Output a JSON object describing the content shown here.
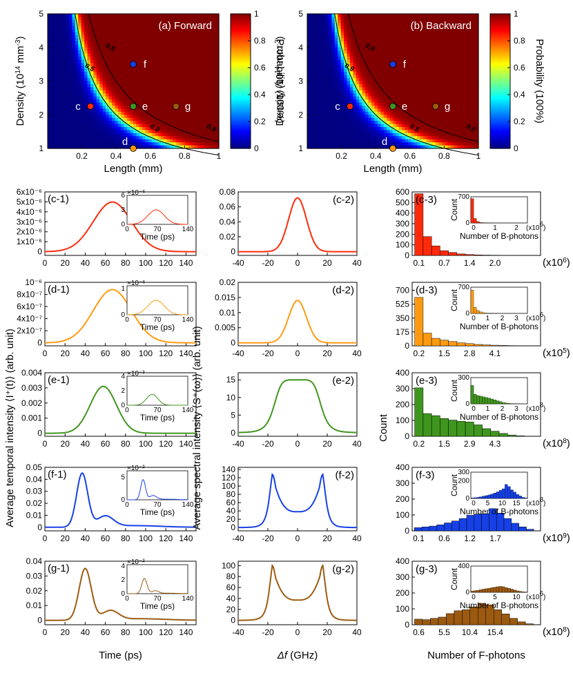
{
  "colors": {
    "c": "#ff2a0a",
    "d": "#ff9a10",
    "e": "#3f961e",
    "f": "#1640e6",
    "g": "#9c5a10"
  },
  "heatmaps": [
    {
      "panel": "(a) Forward",
      "xlabel": "Length (mm)",
      "ylabel": "Density (10",
      "ylabel_sup": "14",
      "ylabel_tail": " mm",
      "ylabel_sup2": "-3",
      "ylabel_end": ")",
      "xticks": [
        "0.2",
        "0.4",
        "0.6",
        "0.8",
        "1"
      ],
      "yticks": [
        "1",
        "2",
        "3",
        "4",
        "5"
      ],
      "cbar_label": "Probability (100%)",
      "cbar_ticks": [
        "0",
        "0.2",
        "0.4",
        "0.6",
        "0.8",
        "1"
      ],
      "contours": [
        "0.5",
        "0.9",
        "0.5",
        "0.9"
      ],
      "points": [
        {
          "id": "c",
          "L": 0.25,
          "D": 2.25
        },
        {
          "id": "d",
          "L": 0.5,
          "D": 1.0
        },
        {
          "id": "e",
          "L": 0.5,
          "D": 2.25
        },
        {
          "id": "f",
          "L": 0.5,
          "D": 3.5
        },
        {
          "id": "g",
          "L": 0.75,
          "D": 2.25
        }
      ]
    },
    {
      "panel": "(b) Backward",
      "xlabel": "Length (mm)",
      "ylabel": "Density (10",
      "ylabel_sup": "14",
      "ylabel_tail": " mm",
      "ylabel_sup2": "-3",
      "ylabel_end": ")",
      "xticks": [
        "0.2",
        "0.4",
        "0.6",
        "0.8",
        "1"
      ],
      "yticks": [
        "1",
        "2",
        "3",
        "4",
        "5"
      ],
      "cbar_label": "Probability (100%)",
      "cbar_ticks": [
        "0",
        "0.2",
        "0.4",
        "0.6",
        "0.8",
        "1"
      ],
      "contours": [
        "0.9",
        "0.5",
        "0.9",
        "0.5"
      ],
      "points": [
        {
          "id": "c",
          "L": 0.25,
          "D": 2.25
        },
        {
          "id": "d",
          "L": 0.5,
          "D": 1.0
        },
        {
          "id": "e",
          "L": 0.5,
          "D": 2.25
        },
        {
          "id": "f",
          "L": 0.5,
          "D": 3.5
        },
        {
          "id": "g",
          "L": 0.75,
          "D": 2.25
        }
      ]
    }
  ],
  "chart_data": {
    "type": "line",
    "col1": {
      "xlabel": "Time (ps)",
      "ylabel": "Average temporal intensity ⟨I⁺(t)⟩ (arb. unit)",
      "xticks": [
        "0",
        "20",
        "40",
        "60",
        "80",
        "100",
        "120",
        "140"
      ],
      "rows": [
        {
          "id": "c",
          "label": "(c-1)",
          "ylim": [
            -3.75e-07,
            6e-06
          ],
          "yticks": [
            "0",
            "1x10⁻⁶",
            "2x10⁻⁶",
            "3x10⁻⁶",
            "4x10⁻⁶",
            "5x10⁻⁶",
            "6x10⁻⁶"
          ],
          "ytick_vals": [
            0,
            1e-06,
            2e-06,
            3e-06,
            4e-06,
            5e-06,
            6e-06
          ],
          "peak": 4.98e-06,
          "inset": {
            "exp": "×10⁻⁶",
            "yticks": [
              "0",
              "3",
              "6"
            ],
            "ymax": 6,
            "peak": 3,
            "xticks": [
              "0",
              "70",
              "140"
            ],
            "xlabel": "Time (ps)"
          }
        },
        {
          "id": "d",
          "label": "(d-1)",
          "ylim": [
            -5e-08,
            1e-06
          ],
          "yticks": [
            "0",
            "2x10⁻⁷",
            "4x10⁻⁷",
            "6x10⁻⁷",
            "8x10⁻⁷",
            "10⁻⁶"
          ],
          "ytick_vals": [
            0,
            2e-07,
            4e-07,
            6e-07,
            8e-07,
            1e-06
          ],
          "peak": 8.8e-07,
          "inset": {
            "exp": "×10⁻⁶",
            "yticks": [
              "0",
              "1"
            ],
            "ymax": 1.1,
            "peak": 0.55,
            "xticks": [
              "0",
              "70",
              "140"
            ],
            "xlabel": "Time (ps)"
          }
        },
        {
          "id": "e",
          "label": "(e-1)",
          "ylim": [
            -0.0002,
            0.004
          ],
          "yticks": [
            "0",
            "0.001",
            "0.002",
            "0.003",
            "0.004"
          ],
          "ytick_vals": [
            0,
            0.001,
            0.002,
            0.003,
            0.004
          ],
          "peak": 0.0031,
          "inset": {
            "exp": "×10⁻³",
            "yticks": [
              "0",
              "2",
              "4"
            ],
            "ymax": 4,
            "peak": 1.5,
            "xticks": [
              "0",
              "70",
              "140"
            ],
            "xlabel": "Time (ps)"
          }
        },
        {
          "id": "f",
          "label": "(f-1)",
          "ylim": [
            -0.003,
            0.05
          ],
          "yticks": [
            "0",
            "0.01",
            "0.02",
            "0.03",
            "0.04",
            "0.05"
          ],
          "ytick_vals": [
            0,
            0.01,
            0.02,
            0.03,
            0.04,
            0.05
          ],
          "peak": 0.045,
          "inset": {
            "exp": "×10⁻²",
            "yticks": [
              "0",
              "5"
            ],
            "ymax": 6.5,
            "peak": 4.5,
            "xticks": [
              "0",
              "70",
              "140"
            ],
            "xlabel": "Time (ps)"
          }
        },
        {
          "id": "g",
          "label": "(g-1)",
          "ylim": [
            -0.003,
            0.04
          ],
          "yticks": [
            "0",
            "0.01",
            "0.02",
            "0.03",
            "0.04"
          ],
          "ytick_vals": [
            0,
            0.01,
            0.02,
            0.03,
            0.04
          ],
          "peak": 0.035,
          "inset": {
            "exp": "×10⁻²",
            "yticks": [
              "0",
              "2",
              "4"
            ],
            "ymax": 4.2,
            "peak": 2.2,
            "xticks": [
              "0",
              "70",
              "140"
            ],
            "xlabel": "Time (ps)"
          }
        }
      ]
    },
    "col2": {
      "xlabel_sym": "Δf",
      "xlabel_unit": " (GHz)",
      "ylabel": "Average spectral intensity ⟨S⁺(ω)⟩ (arb. unit)",
      "xticks": [
        "-40",
        "-20",
        "0",
        "20",
        "40"
      ],
      "rows": [
        {
          "id": "c",
          "label": "(c-2)",
          "ylim": [
            -0.005,
            0.08
          ],
          "yticks": [
            "0",
            "0.02",
            "0.04",
            "0.06",
            "0.08"
          ],
          "ytick_vals": [
            0,
            0.02,
            0.04,
            0.06,
            0.08
          ],
          "shape": "peak",
          "peak": 0.072,
          "width": 6,
          "base": 0
        },
        {
          "id": "d",
          "label": "(d-2)",
          "ylim": [
            -0.001,
            0.02
          ],
          "yticks": [
            "0",
            "0.005",
            "0.01",
            "0.015",
            "0.02"
          ],
          "ytick_vals": [
            0,
            0.005,
            0.01,
            0.015,
            0.02
          ],
          "shape": "peak",
          "peak": 0.014,
          "width": 6,
          "base": 0
        },
        {
          "id": "e",
          "label": "(e-2)",
          "ylim": [
            -1,
            17
          ],
          "yticks": [
            "0",
            "5",
            "10",
            "15"
          ],
          "ytick_vals": [
            0,
            5,
            10,
            15
          ],
          "shape": "flat",
          "peak": 15,
          "width": 16,
          "base": 0
        },
        {
          "id": "f",
          "label": "(f-2)",
          "ylim": [
            -8,
            145
          ],
          "yticks": [
            "0",
            "20",
            "40",
            "60",
            "80",
            "100",
            "120",
            "140"
          ],
          "ytick_vals": [
            0,
            20,
            40,
            60,
            80,
            100,
            120,
            140
          ],
          "shape": "double",
          "peak": 128,
          "width": 18,
          "base": 38
        },
        {
          "id": "g",
          "label": "(g-2)",
          "ylim": [
            -8,
            108
          ],
          "yticks": [
            "0",
            "20",
            "40",
            "60",
            "80",
            "100"
          ],
          "ytick_vals": [
            0,
            20,
            40,
            60,
            80,
            100
          ],
          "shape": "double",
          "peak": 100,
          "width": 16,
          "base": 37
        }
      ]
    },
    "col3": {
      "type": "bar",
      "xlabel": "Number of F-photons",
      "ylabel": "Count",
      "rows": [
        {
          "id": "c",
          "label": "(c-3)",
          "ylim": [
            0,
            600
          ],
          "yticks": [
            "0",
            "100",
            "200",
            "300",
            "400",
            "500",
            "600"
          ],
          "ytick_vals": [
            0,
            100,
            200,
            300,
            400,
            500,
            600
          ],
          "xticks": [
            "0.1",
            "0.7",
            "1.4",
            "2.0"
          ],
          "xtick_pos": [
            0,
            3,
            6,
            9
          ],
          "multiplier": "(x10",
          "multiplier_exp": "6",
          "multiplier_end": ")",
          "values": [
            583,
            178,
            90,
            45,
            28,
            14,
            9,
            5,
            3,
            2,
            1,
            1,
            0,
            0
          ],
          "inset": {
            "ylabel": "Count",
            "xlabel": "Number of B-photons",
            "yticks": [
              "0",
              "700"
            ],
            "ymax": 700,
            "xticks": [
              "0",
              "1",
              "2"
            ],
            "xtick_pos": [
              0,
              0.5,
              1
            ],
            "mult": "(x10",
            "mult_exp": "6",
            "mult_end": ")",
            "values": [
              650,
              120,
              40,
              15,
              8,
              4,
              2,
              1,
              0,
              0,
              0,
              0,
              0,
              0,
              0,
              0,
              0,
              0,
              0,
              0
            ]
          }
        },
        {
          "id": "d",
          "label": "(d-3)",
          "ylim": [
            0,
            800
          ],
          "yticks": [
            "0",
            "175",
            "350",
            "525",
            "700"
          ],
          "ytick_vals": [
            0,
            175,
            350,
            525,
            700
          ],
          "xticks": [
            "0.2",
            "1.5",
            "2.8",
            "4.1"
          ],
          "xtick_pos": [
            0,
            3,
            6,
            9
          ],
          "multiplier": "(x10",
          "multiplier_exp": "5",
          "multiplier_end": ")",
          "values": [
            610,
            160,
            95,
            72,
            55,
            38,
            28,
            18,
            12,
            8,
            5,
            3,
            2,
            1
          ],
          "inset": {
            "ylabel": "Count",
            "xlabel": "Number of B-photons",
            "yticks": [
              "0",
              "700"
            ],
            "ymax": 700,
            "xticks": [
              "0",
              "1",
              "2",
              "3"
            ],
            "xtick_pos": [
              0,
              0.33,
              0.67,
              1
            ],
            "mult": "(x10",
            "mult_exp": "6",
            "mult_end": ")",
            "values": [
              620,
              160,
              80,
              40,
              20,
              10,
              5,
              3,
              2,
              1,
              0,
              0,
              0,
              0,
              0,
              0,
              0,
              0,
              0,
              0
            ]
          }
        },
        {
          "id": "e",
          "label": "(e-3)",
          "ylim": [
            0,
            400
          ],
          "yticks": [
            "0",
            "100",
            "200",
            "300",
            "400"
          ],
          "ytick_vals": [
            0,
            100,
            200,
            300,
            400
          ],
          "xticks": [
            "0.2",
            "1.5",
            "2.9",
            "4.3"
          ],
          "xtick_pos": [
            0,
            3,
            6,
            9
          ],
          "multiplier": "(x10",
          "multiplier_exp": "8",
          "multiplier_end": ")",
          "values": [
            305,
            143,
            130,
            112,
            102,
            95,
            90,
            72,
            48,
            32,
            18,
            8,
            3,
            1
          ],
          "inset": {
            "ylabel": "Count",
            "xlabel": "Number of B-photons",
            "yticks": [
              "0",
              "300"
            ],
            "ymax": 300,
            "xticks": [
              "0",
              "1",
              "2",
              "3"
            ],
            "xtick_pos": [
              0,
              0.33,
              0.67,
              1
            ],
            "mult": "(x10",
            "mult_exp": "8",
            "mult_end": ")",
            "values": [
              210,
              110,
              95,
              88,
              80,
              72,
              65,
              55,
              45,
              35,
              25,
              15,
              10,
              6,
              3,
              2,
              1,
              0,
              0,
              0
            ]
          }
        },
        {
          "id": "f",
          "label": "(f-3)",
          "ylim": [
            0,
            400
          ],
          "yticks": [
            "0",
            "100",
            "200",
            "300",
            "400"
          ],
          "ytick_vals": [
            0,
            100,
            200,
            300,
            400
          ],
          "xticks": [
            "0.1",
            "0.6",
            "1.2",
            "1.7"
          ],
          "xtick_pos": [
            0,
            3,
            6,
            9
          ],
          "multiplier": "(x10",
          "multiplier_exp": "9",
          "multiplier_end": ")",
          "values": [
            20,
            25,
            30,
            38,
            50,
            62,
            78,
            98,
            105,
            108,
            140,
            112,
            78,
            48,
            25,
            10
          ],
          "inset": {
            "ylabel": "Count",
            "xlabel": "Number of B-photons",
            "yticks": [
              "0",
              "200",
              "300"
            ],
            "ymax": 300,
            "xticks": [
              "0",
              "5",
              "10",
              "15"
            ],
            "xtick_pos": [
              0,
              0.33,
              0.67,
              1
            ],
            "mult": "(x10",
            "mult_exp": "8",
            "mult_end": ")",
            "values": [
              5,
              8,
              12,
              18,
              25,
              32,
              40,
              50,
              62,
              75,
              92,
              110,
              160,
              135,
              98,
              72,
              45,
              28,
              12,
              5
            ]
          }
        },
        {
          "id": "g",
          "label": "(g-3)",
          "ylim": [
            0,
            400
          ],
          "yticks": [
            "0",
            "100",
            "200",
            "300",
            "400"
          ],
          "ytick_vals": [
            0,
            100,
            200,
            300,
            400
          ],
          "xticks": [
            "0.6",
            "5.5",
            "10.4",
            "15.4"
          ],
          "xtick_pos": [
            0,
            3,
            6,
            9
          ],
          "multiplier": "(x10",
          "multiplier_exp": "8",
          "multiplier_end": ")",
          "values": [
            35,
            32,
            40,
            48,
            70,
            88,
            95,
            112,
            135,
            125,
            95,
            68,
            40,
            18,
            6
          ],
          "inset": {
            "ylabel": "Count",
            "xlabel": "Number of B-photons",
            "yticks": [
              "0",
              "400"
            ],
            "ymax": 400,
            "xticks": [
              "0",
              "5",
              "10"
            ],
            "xtick_pos": [
              0,
              0.5,
              1
            ],
            "mult": "(x10",
            "mult_exp": "6",
            "mult_end": ")",
            "values": [
              20,
              25,
              30,
              40,
              48,
              55,
              62,
              70,
              78,
              85,
              90,
              85,
              72,
              60,
              48,
              35,
              22,
              15,
              8,
              4
            ]
          }
        }
      ]
    }
  }
}
